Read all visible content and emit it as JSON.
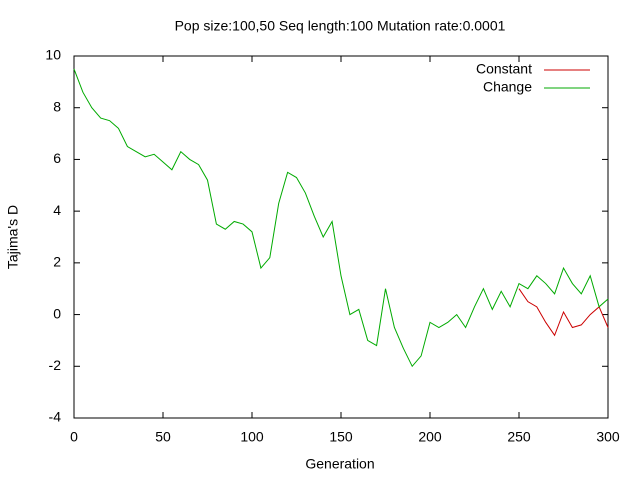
{
  "chart_data": {
    "type": "line",
    "title": "Pop size:100,50 Seq length:100 Mutation rate:0.0001",
    "x_label": "Generation",
    "y_label": "Tajima's D",
    "xlim": [
      0,
      300
    ],
    "ylim": [
      -4,
      10
    ],
    "xticks": [
      0,
      50,
      100,
      150,
      200,
      250,
      300
    ],
    "yticks": [
      -4,
      -2,
      0,
      2,
      4,
      6,
      8,
      10
    ],
    "legend": "top-right",
    "grid": false,
    "x": [
      0,
      5,
      10,
      15,
      20,
      25,
      30,
      35,
      40,
      45,
      50,
      55,
      60,
      65,
      70,
      75,
      80,
      85,
      90,
      95,
      100,
      105,
      110,
      115,
      120,
      125,
      130,
      135,
      140,
      145,
      150,
      155,
      160,
      165,
      170,
      175,
      180,
      185,
      190,
      195,
      200,
      205,
      210,
      215,
      220,
      225,
      230,
      235,
      240,
      245,
      250,
      255,
      260,
      265,
      270,
      275,
      280,
      285,
      290,
      295,
      300
    ],
    "series": [
      {
        "name": "Constant",
        "color": "#cc0000",
        "values": [
          null,
          null,
          null,
          null,
          null,
          null,
          null,
          null,
          null,
          null,
          null,
          null,
          null,
          null,
          null,
          null,
          null,
          null,
          null,
          null,
          null,
          null,
          null,
          null,
          null,
          null,
          null,
          null,
          null,
          null,
          null,
          null,
          null,
          null,
          null,
          null,
          null,
          null,
          null,
          null,
          null,
          null,
          null,
          null,
          null,
          null,
          null,
          null,
          null,
          null,
          1.0,
          0.5,
          0.3,
          -0.3,
          -0.8,
          0.1,
          -0.5,
          -0.4,
          0.0,
          0.3,
          -0.5
        ]
      },
      {
        "name": "Change",
        "color": "#00aa00",
        "values": [
          9.5,
          8.6,
          8.0,
          7.6,
          7.5,
          7.2,
          6.5,
          6.3,
          6.1,
          6.2,
          5.9,
          5.6,
          6.3,
          6.0,
          5.8,
          5.2,
          3.5,
          3.3,
          3.6,
          3.5,
          3.2,
          1.8,
          2.2,
          4.3,
          5.5,
          5.3,
          4.7,
          3.8,
          3.0,
          3.6,
          1.5,
          0.0,
          0.2,
          -1.0,
          -1.2,
          1.0,
          -0.5,
          -1.3,
          -2.0,
          -1.6,
          -0.3,
          -0.5,
          -0.3,
          0.0,
          -0.5,
          0.3,
          1.0,
          0.2,
          0.9,
          0.3,
          1.2,
          1.0,
          1.5,
          1.2,
          0.8,
          1.8,
          1.2,
          0.8,
          1.5,
          0.3,
          0.6
        ]
      }
    ]
  }
}
